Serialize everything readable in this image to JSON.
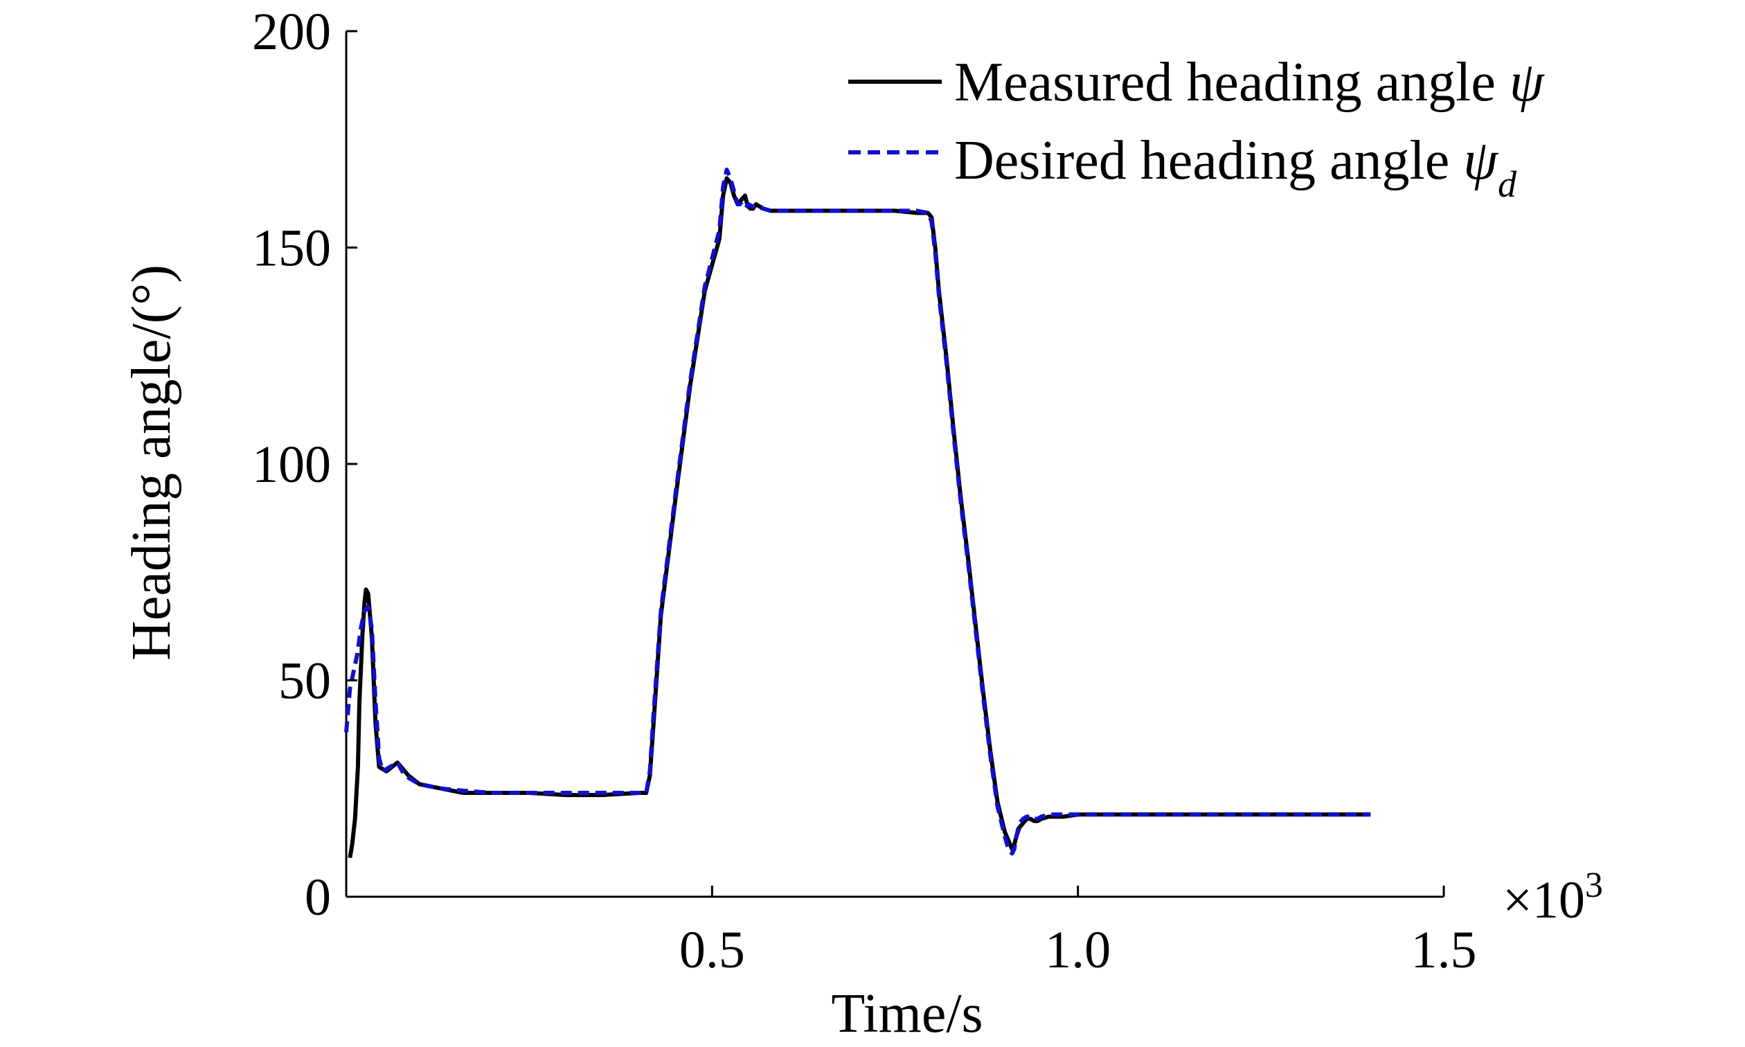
{
  "chart_data": {
    "type": "line",
    "title": "",
    "xlabel": "Time/s",
    "ylabel": "Heading angle/(°)",
    "x_multiplier_label": "×10",
    "x_multiplier_exponent": "3",
    "xlim": [
      0,
      1500
    ],
    "ylim": [
      0,
      200
    ],
    "x_ticks": [
      500,
      1000,
      1500
    ],
    "x_tick_labels": [
      "0.5",
      "1.0",
      "1.5"
    ],
    "y_ticks": [
      0,
      50,
      100,
      150,
      200
    ],
    "y_tick_labels": [
      "0",
      "50",
      "100",
      "150",
      "200"
    ],
    "grid": false,
    "legend": {
      "position": "top-right"
    },
    "series": [
      {
        "name": "Measured heading angle ψ",
        "legend_text": "Measured heading angle ",
        "legend_symbol": "ψ",
        "legend_subscript": "",
        "color": "#000000",
        "style": "solid",
        "x": [
          5,
          8,
          12,
          16,
          18,
          22,
          25,
          27,
          30,
          35,
          40,
          45,
          55,
          70,
          85,
          100,
          130,
          160,
          200,
          250,
          300,
          350,
          400,
          410,
          415,
          420,
          430,
          450,
          470,
          490,
          510,
          515,
          520,
          525,
          530,
          535,
          540,
          545,
          548,
          552,
          556,
          560,
          570,
          580,
          600,
          650,
          700,
          750,
          780,
          795,
          800,
          805,
          810,
          820,
          830,
          840,
          850,
          860,
          870,
          880,
          890,
          900,
          905,
          910,
          913,
          916,
          920,
          925,
          930,
          935,
          940,
          945,
          950,
          960,
          980,
          1000,
          1100,
          1200,
          1300,
          1400
        ],
        "y": [
          9,
          12,
          18,
          30,
          45,
          60,
          68,
          71,
          70,
          60,
          40,
          30,
          29,
          31,
          28,
          26,
          25,
          24,
          24,
          24,
          23.5,
          23.5,
          24,
          24,
          28,
          40,
          65,
          92,
          118,
          140,
          152,
          162,
          166,
          165,
          162,
          160,
          161,
          162,
          160,
          159,
          159,
          160,
          159,
          158.5,
          158.5,
          158.5,
          158.5,
          158.5,
          158,
          158,
          157,
          150,
          140,
          125,
          108,
          92,
          78,
          63,
          48,
          34,
          22,
          15,
          13,
          11,
          12,
          14,
          16,
          17,
          18,
          18,
          17.5,
          17.5,
          18,
          18.5,
          18.5,
          19,
          19,
          19,
          19,
          19
        ]
      },
      {
        "name": "Desired heading angle ψd",
        "legend_text": "Desired heading angle ",
        "legend_symbol": "ψ",
        "legend_subscript": "d",
        "color": "#1010cc",
        "style": "dashed",
        "x": [
          0,
          5,
          10,
          15,
          20,
          25,
          30,
          35,
          40,
          45,
          50,
          60,
          70,
          80,
          100,
          130,
          160,
          200,
          250,
          300,
          350,
          400,
          410,
          415,
          420,
          430,
          450,
          470,
          490,
          510,
          515,
          520,
          525,
          530,
          535,
          540,
          545,
          550,
          555,
          560,
          570,
          580,
          600,
          650,
          700,
          750,
          780,
          795,
          800,
          805,
          810,
          820,
          830,
          840,
          850,
          860,
          870,
          880,
          890,
          900,
          905,
          910,
          913,
          916,
          920,
          925,
          930,
          935,
          940,
          945,
          950,
          960,
          980,
          1000,
          1100,
          1200,
          1300,
          1400
        ],
        "y": [
          38,
          48,
          52,
          56,
          62,
          66,
          67,
          62,
          45,
          32,
          29,
          30,
          31,
          28,
          26,
          25,
          24.5,
          24,
          24,
          24,
          24,
          24,
          24,
          29,
          42,
          66,
          93,
          119,
          141,
          154,
          164,
          168,
          166,
          163,
          160,
          160,
          159,
          160,
          159.5,
          159.5,
          159,
          158.5,
          158.5,
          158.5,
          158.5,
          158.5,
          158.5,
          158,
          156,
          149,
          139,
          124,
          107,
          91,
          77,
          62,
          47,
          33,
          21,
          14,
          11,
          10,
          11,
          14,
          17,
          18,
          18.5,
          18.5,
          18,
          18,
          18.5,
          19,
          19,
          19,
          19,
          19,
          19,
          19
        ]
      }
    ]
  }
}
